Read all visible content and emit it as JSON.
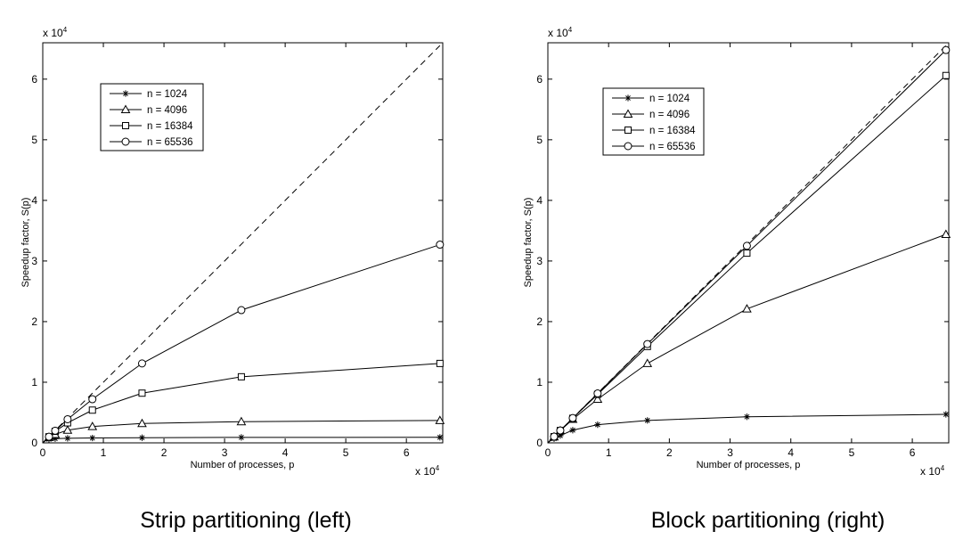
{
  "chart_data": [
    {
      "type": "line",
      "caption": "Strip partitioning (left)",
      "xlabel": "Number of processes, p",
      "ylabel": "Speedup factor, S(p)",
      "x_multiplier": "x 10",
      "x_multiplier_exp": "4",
      "y_multiplier": "x 10",
      "y_multiplier_exp": "4",
      "xlim": [
        0,
        66000
      ],
      "ylim": [
        0,
        66000
      ],
      "xticks": [
        0,
        10000,
        20000,
        30000,
        40000,
        50000,
        60000
      ],
      "xtick_labels": [
        "0",
        "1",
        "2",
        "3",
        "4",
        "5",
        "6"
      ],
      "yticks": [
        0,
        10000,
        20000,
        30000,
        40000,
        50000,
        60000
      ],
      "ytick_labels": [
        "0",
        "1",
        "2",
        "3",
        "4",
        "5",
        "6"
      ],
      "grid": false,
      "legend_position": "top-left",
      "ideal_line": {
        "style": "dashed",
        "x": [
          0,
          65536
        ],
        "y": [
          0,
          65536
        ]
      },
      "x": [
        1,
        4,
        16,
        64,
        256,
        1024,
        2048,
        4096,
        8192,
        16384,
        32768,
        65536
      ],
      "series": [
        {
          "name": "n = 1024",
          "marker": "asterisk",
          "values": [
            1,
            4,
            16,
            63,
            240,
            600,
            700,
            750,
            800,
            850,
            900,
            910
          ]
        },
        {
          "name": "n = 4096",
          "marker": "triangle",
          "values": [
            1,
            4,
            16,
            64,
            250,
            900,
            1400,
            2100,
            2700,
            3200,
            3500,
            3700
          ]
        },
        {
          "name": "n = 16384",
          "marker": "square",
          "values": [
            1,
            4,
            16,
            64,
            255,
            1000,
            1900,
            3300,
            5400,
            8200,
            10900,
            13100
          ]
        },
        {
          "name": "n = 65536",
          "marker": "circle",
          "values": [
            1,
            4,
            16,
            64,
            256,
            1010,
            2000,
            3900,
            7200,
            13100,
            21900,
            32700
          ]
        }
      ]
    },
    {
      "type": "line",
      "caption": "Block partitioning (right)",
      "xlabel": "Number of processes, p",
      "ylabel": "Speedup factor, S(p)",
      "x_multiplier": "x 10",
      "x_multiplier_exp": "4",
      "y_multiplier": "x 10",
      "y_multiplier_exp": "4",
      "xlim": [
        0,
        66000
      ],
      "ylim": [
        0,
        66000
      ],
      "xticks": [
        0,
        10000,
        20000,
        30000,
        40000,
        50000,
        60000
      ],
      "xtick_labels": [
        "0",
        "1",
        "2",
        "3",
        "4",
        "5",
        "6"
      ],
      "yticks": [
        0,
        10000,
        20000,
        30000,
        40000,
        50000,
        60000
      ],
      "ytick_labels": [
        "0",
        "1",
        "2",
        "3",
        "4",
        "5",
        "6"
      ],
      "grid": false,
      "legend_position": "top-left",
      "ideal_line": {
        "style": "dashed",
        "x": [
          0,
          65536
        ],
        "y": [
          0,
          65536
        ]
      },
      "x": [
        1,
        4,
        16,
        64,
        256,
        1024,
        2048,
        4096,
        8192,
        16384,
        32768,
        65536
      ],
      "series": [
        {
          "name": "n = 1024",
          "marker": "asterisk",
          "values": [
            1,
            4,
            16,
            63,
            240,
            700,
            1200,
            2100,
            3000,
            3700,
            4300,
            4700
          ]
        },
        {
          "name": "n = 4096",
          "marker": "triangle",
          "values": [
            1,
            4,
            16,
            64,
            256,
            1000,
            2000,
            3900,
            7200,
            13100,
            22100,
            34400
          ]
        },
        {
          "name": "n = 16384",
          "marker": "square",
          "values": [
            1,
            4,
            16,
            64,
            256,
            1020,
            2040,
            4050,
            8000,
            15900,
            31300,
            60600
          ]
        },
        {
          "name": "n = 65536",
          "marker": "circle",
          "values": [
            1,
            4,
            16,
            64,
            256,
            1024,
            2048,
            4090,
            8150,
            16300,
            32500,
            64800
          ]
        }
      ]
    }
  ]
}
